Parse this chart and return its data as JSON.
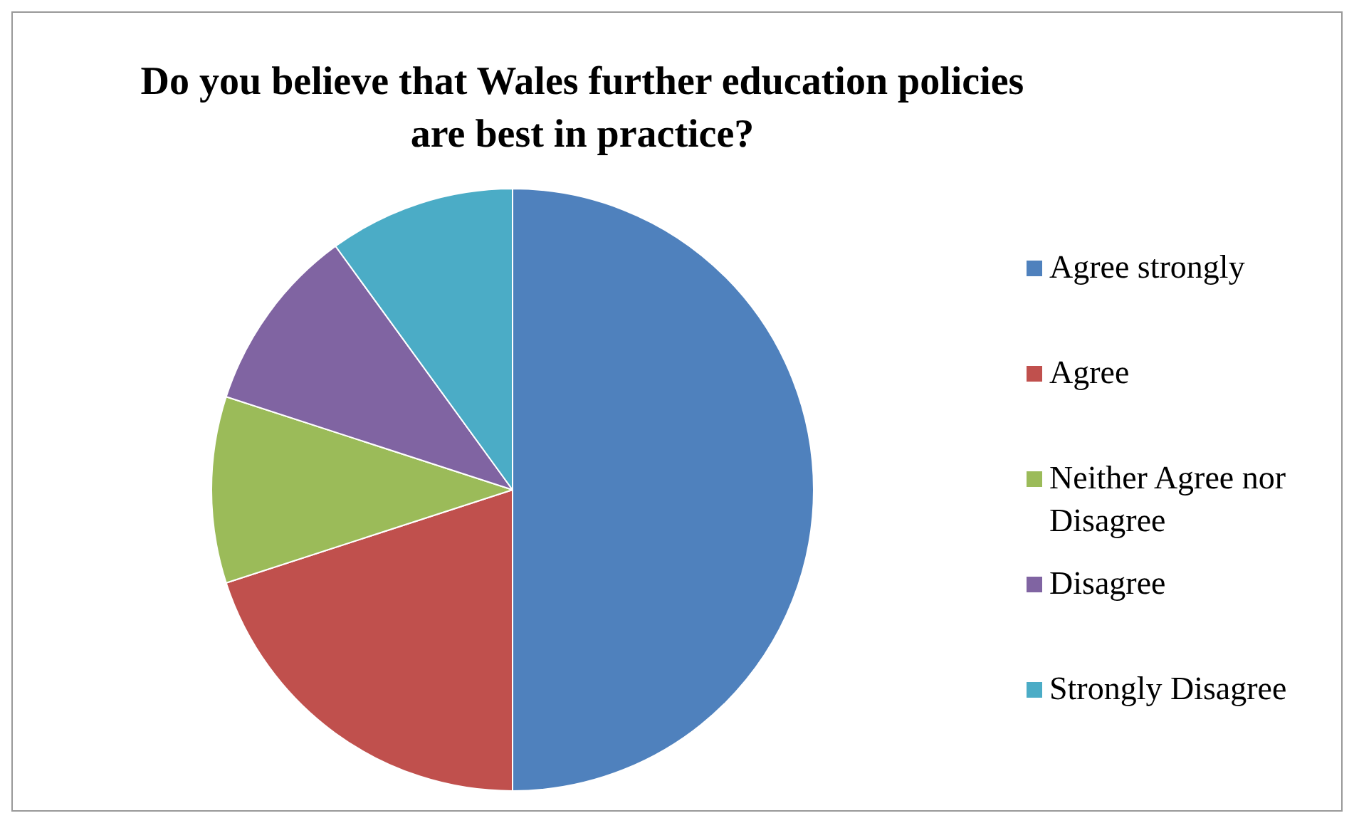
{
  "chart_data": {
    "type": "pie",
    "title": "Do you believe that Wales further education policies are best in practice?",
    "categories": [
      "Agree strongly",
      "Agree",
      "Neither Agree nor Disagree",
      "Disagree",
      "Strongly Disagree"
    ],
    "values": [
      50,
      20,
      10,
      10,
      10
    ],
    "colors": [
      "#4f81bd",
      "#c0504d",
      "#9bbb59",
      "#8064a2",
      "#4bacc6"
    ],
    "legend": "right"
  }
}
